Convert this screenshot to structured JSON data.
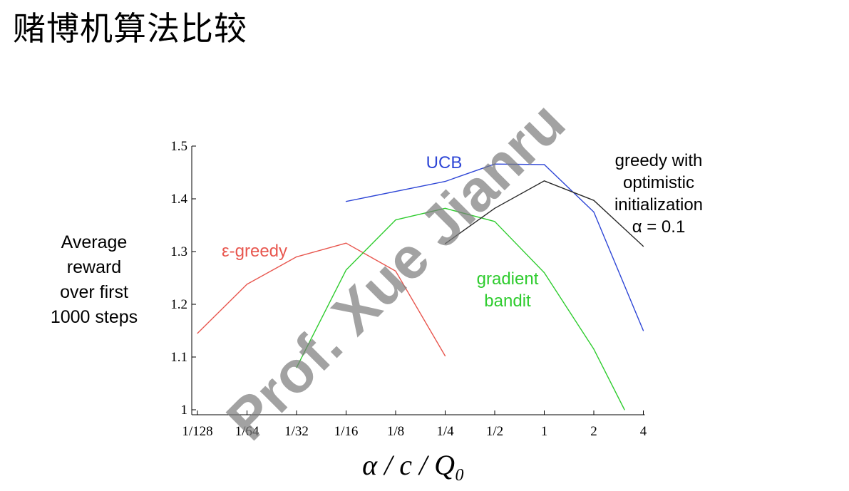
{
  "page": {
    "title": "赌博机算法比较",
    "watermark": "Prof. Xue Jianru"
  },
  "chart_data": {
    "type": "line",
    "xlabel": "α / c / Q₀",
    "ylabel_lines": [
      "Average",
      "reward",
      "over first",
      "1000 steps"
    ],
    "categories": [
      "1/128",
      "1/64",
      "1/32",
      "1/16",
      "1/8",
      "1/4",
      "1/2",
      "1",
      "2",
      "4"
    ],
    "yticks": [
      "1",
      "1.1",
      "1.2",
      "1.3",
      "1.4",
      "1.5"
    ],
    "ylim": [
      1.0,
      1.5
    ],
    "grid": false,
    "series": [
      {
        "label_lines": [
          "ε-greedy"
        ],
        "color": "#e8574f",
        "points": [
          [
            0,
            1.145
          ],
          [
            1,
            1.238
          ],
          [
            2,
            1.29
          ],
          [
            3,
            1.316
          ],
          [
            4,
            1.263
          ],
          [
            5,
            1.102
          ]
        ]
      },
      {
        "label_lines": [
          "UCB"
        ],
        "color": "#2e46d6",
        "points": [
          [
            3,
            1.395
          ],
          [
            5,
            1.433
          ],
          [
            6,
            1.466
          ],
          [
            7,
            1.465
          ],
          [
            8,
            1.375
          ],
          [
            9,
            1.15
          ]
        ]
      },
      {
        "label_lines": [
          "gradient",
          "bandit"
        ],
        "color": "#2ecc2e",
        "points": [
          [
            2,
            1.08
          ],
          [
            3,
            1.265
          ],
          [
            4,
            1.36
          ],
          [
            5,
            1.382
          ],
          [
            6,
            1.357
          ],
          [
            7,
            1.26
          ],
          [
            8,
            1.115
          ],
          [
            8.62,
            1.0
          ]
        ]
      },
      {
        "label_lines": [
          "greedy with",
          "optimistic",
          "initialization",
          "α = 0.1"
        ],
        "color": "#2a2a2a",
        "points": [
          [
            5,
            1.315
          ],
          [
            6,
            1.382
          ],
          [
            7,
            1.434
          ],
          [
            8,
            1.397
          ],
          [
            9,
            1.31
          ]
        ]
      }
    ]
  }
}
